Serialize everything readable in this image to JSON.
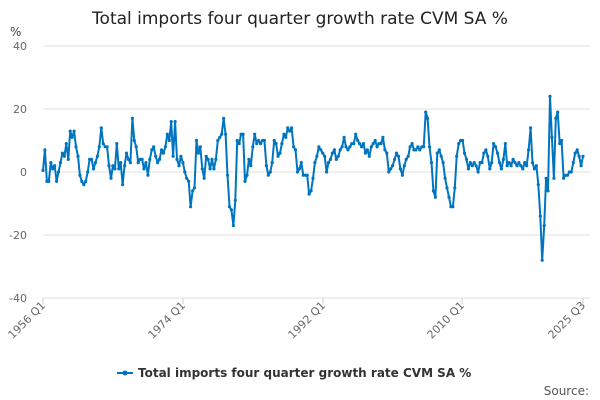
{
  "chart_data": {
    "type": "line",
    "title": "Total imports four quarter growth rate CVM SA %",
    "ylabel": "%",
    "xlabel": "",
    "ylim": [
      -40,
      40
    ],
    "yticks": [
      "40",
      "20",
      "0",
      "-20",
      "-40"
    ],
    "xticks": [
      "1956 Q1",
      "1974 Q1",
      "1992 Q1",
      "2010 Q1",
      "2025 Q3"
    ],
    "x_start": "1956 Q1",
    "x_end": "2025 Q3",
    "grid": true,
    "legend_position": "bottom",
    "color": "#0075bf",
    "series": [
      {
        "name": "Total imports four quarter growth rate CVM SA %",
        "values": [
          0.5,
          7,
          -3,
          -3,
          3,
          1,
          2,
          -3,
          0,
          3,
          6,
          5,
          9,
          4,
          13,
          11,
          13,
          8,
          5,
          -1,
          -3,
          -4,
          -3,
          0,
          4,
          4,
          1,
          3,
          5,
          8,
          14,
          9,
          8,
          8,
          2,
          -2,
          2,
          1,
          9,
          1,
          3,
          -4,
          2,
          6,
          4,
          3,
          17,
          10,
          8,
          3,
          4,
          4,
          1,
          3,
          -1,
          4,
          7,
          8,
          5,
          3,
          4,
          7,
          6,
          8,
          12,
          10,
          16,
          5,
          16,
          4,
          2,
          5,
          3,
          0,
          -2,
          -3,
          -11,
          -6,
          -5,
          10,
          6,
          8,
          1,
          -2,
          5,
          4,
          1,
          4,
          1,
          4,
          10,
          11,
          12,
          17,
          12,
          -1,
          -11,
          -12,
          -17,
          -9,
          10,
          9,
          12,
          12,
          -3,
          -1,
          4,
          2,
          8,
          12,
          9,
          10,
          9,
          10,
          10,
          2,
          -1,
          0,
          3,
          10,
          9,
          5,
          6,
          9,
          12,
          11,
          14,
          13,
          14,
          8,
          7,
          0,
          1,
          3,
          -1,
          -1,
          -1,
          -7,
          -6,
          -2,
          3,
          5,
          8,
          7,
          6,
          5,
          0,
          3,
          4,
          6,
          7,
          4,
          5,
          7,
          8,
          11,
          8,
          7,
          8,
          9,
          9,
          12,
          10,
          9,
          8,
          9,
          6,
          7,
          5,
          8,
          9,
          10,
          8,
          9,
          9,
          11,
          7,
          6,
          0,
          1,
          2,
          4,
          6,
          5,
          1,
          -1,
          2,
          4,
          5,
          8,
          9,
          7,
          7,
          8,
          7,
          8,
          8,
          19,
          17,
          8,
          3,
          -6,
          -8,
          6,
          7,
          5,
          3,
          -2,
          -5,
          -8,
          -11,
          -11,
          -5,
          5,
          9,
          10,
          10,
          6,
          4,
          1,
          3,
          2,
          3,
          2,
          0,
          3,
          3,
          6,
          7,
          5,
          1,
          3,
          9,
          8,
          6,
          3,
          1,
          4,
          9,
          2,
          3,
          2,
          4,
          3,
          2,
          3,
          2,
          1,
          3,
          2,
          7,
          14,
          3,
          1,
          2,
          -4,
          -14,
          -28,
          -17,
          -2,
          -6,
          24,
          11,
          -2,
          17,
          19,
          9,
          10,
          -2,
          -1,
          -1,
          0,
          0,
          3,
          6,
          7,
          5,
          2,
          5
        ]
      }
    ]
  },
  "source_label": "Source:"
}
